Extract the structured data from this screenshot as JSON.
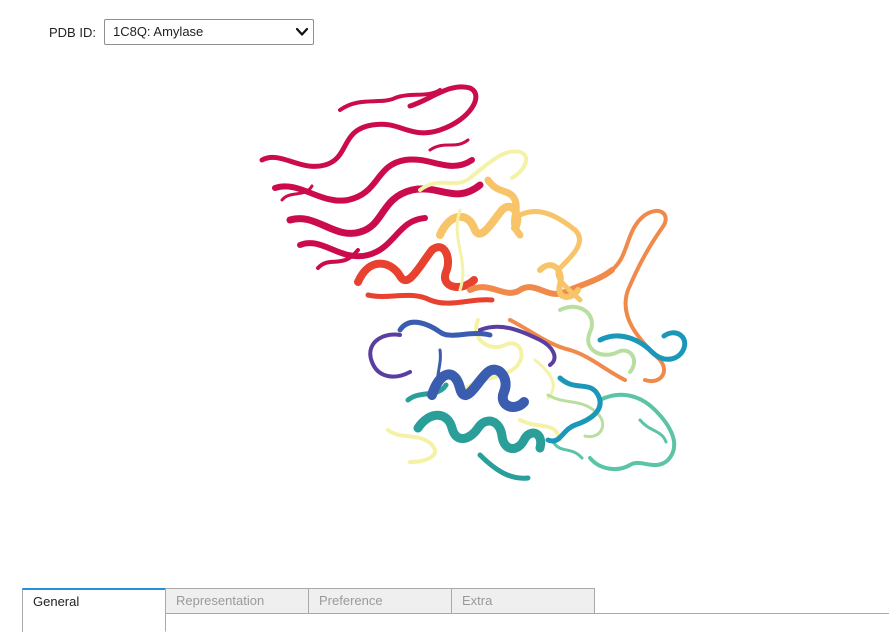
{
  "controls": {
    "pdb_label": "PDB ID:",
    "pdb_selected": "1C8Q: Amylase"
  },
  "tabs": [
    {
      "label": "General",
      "active": true
    },
    {
      "label": "Representation",
      "active": false
    },
    {
      "label": "Preference",
      "active": false
    },
    {
      "label": "Extra",
      "active": false
    }
  ],
  "viewer": {
    "icon": "protein-ribbon-render",
    "colors": [
      "#cc0b4f",
      "#e8412f",
      "#f08a4b",
      "#f7c46a",
      "#f4f2a6",
      "#b9dfa0",
      "#5bc4a6",
      "#1a97b9",
      "#2a9f9a",
      "#3a5db0",
      "#5a3fa0"
    ]
  }
}
